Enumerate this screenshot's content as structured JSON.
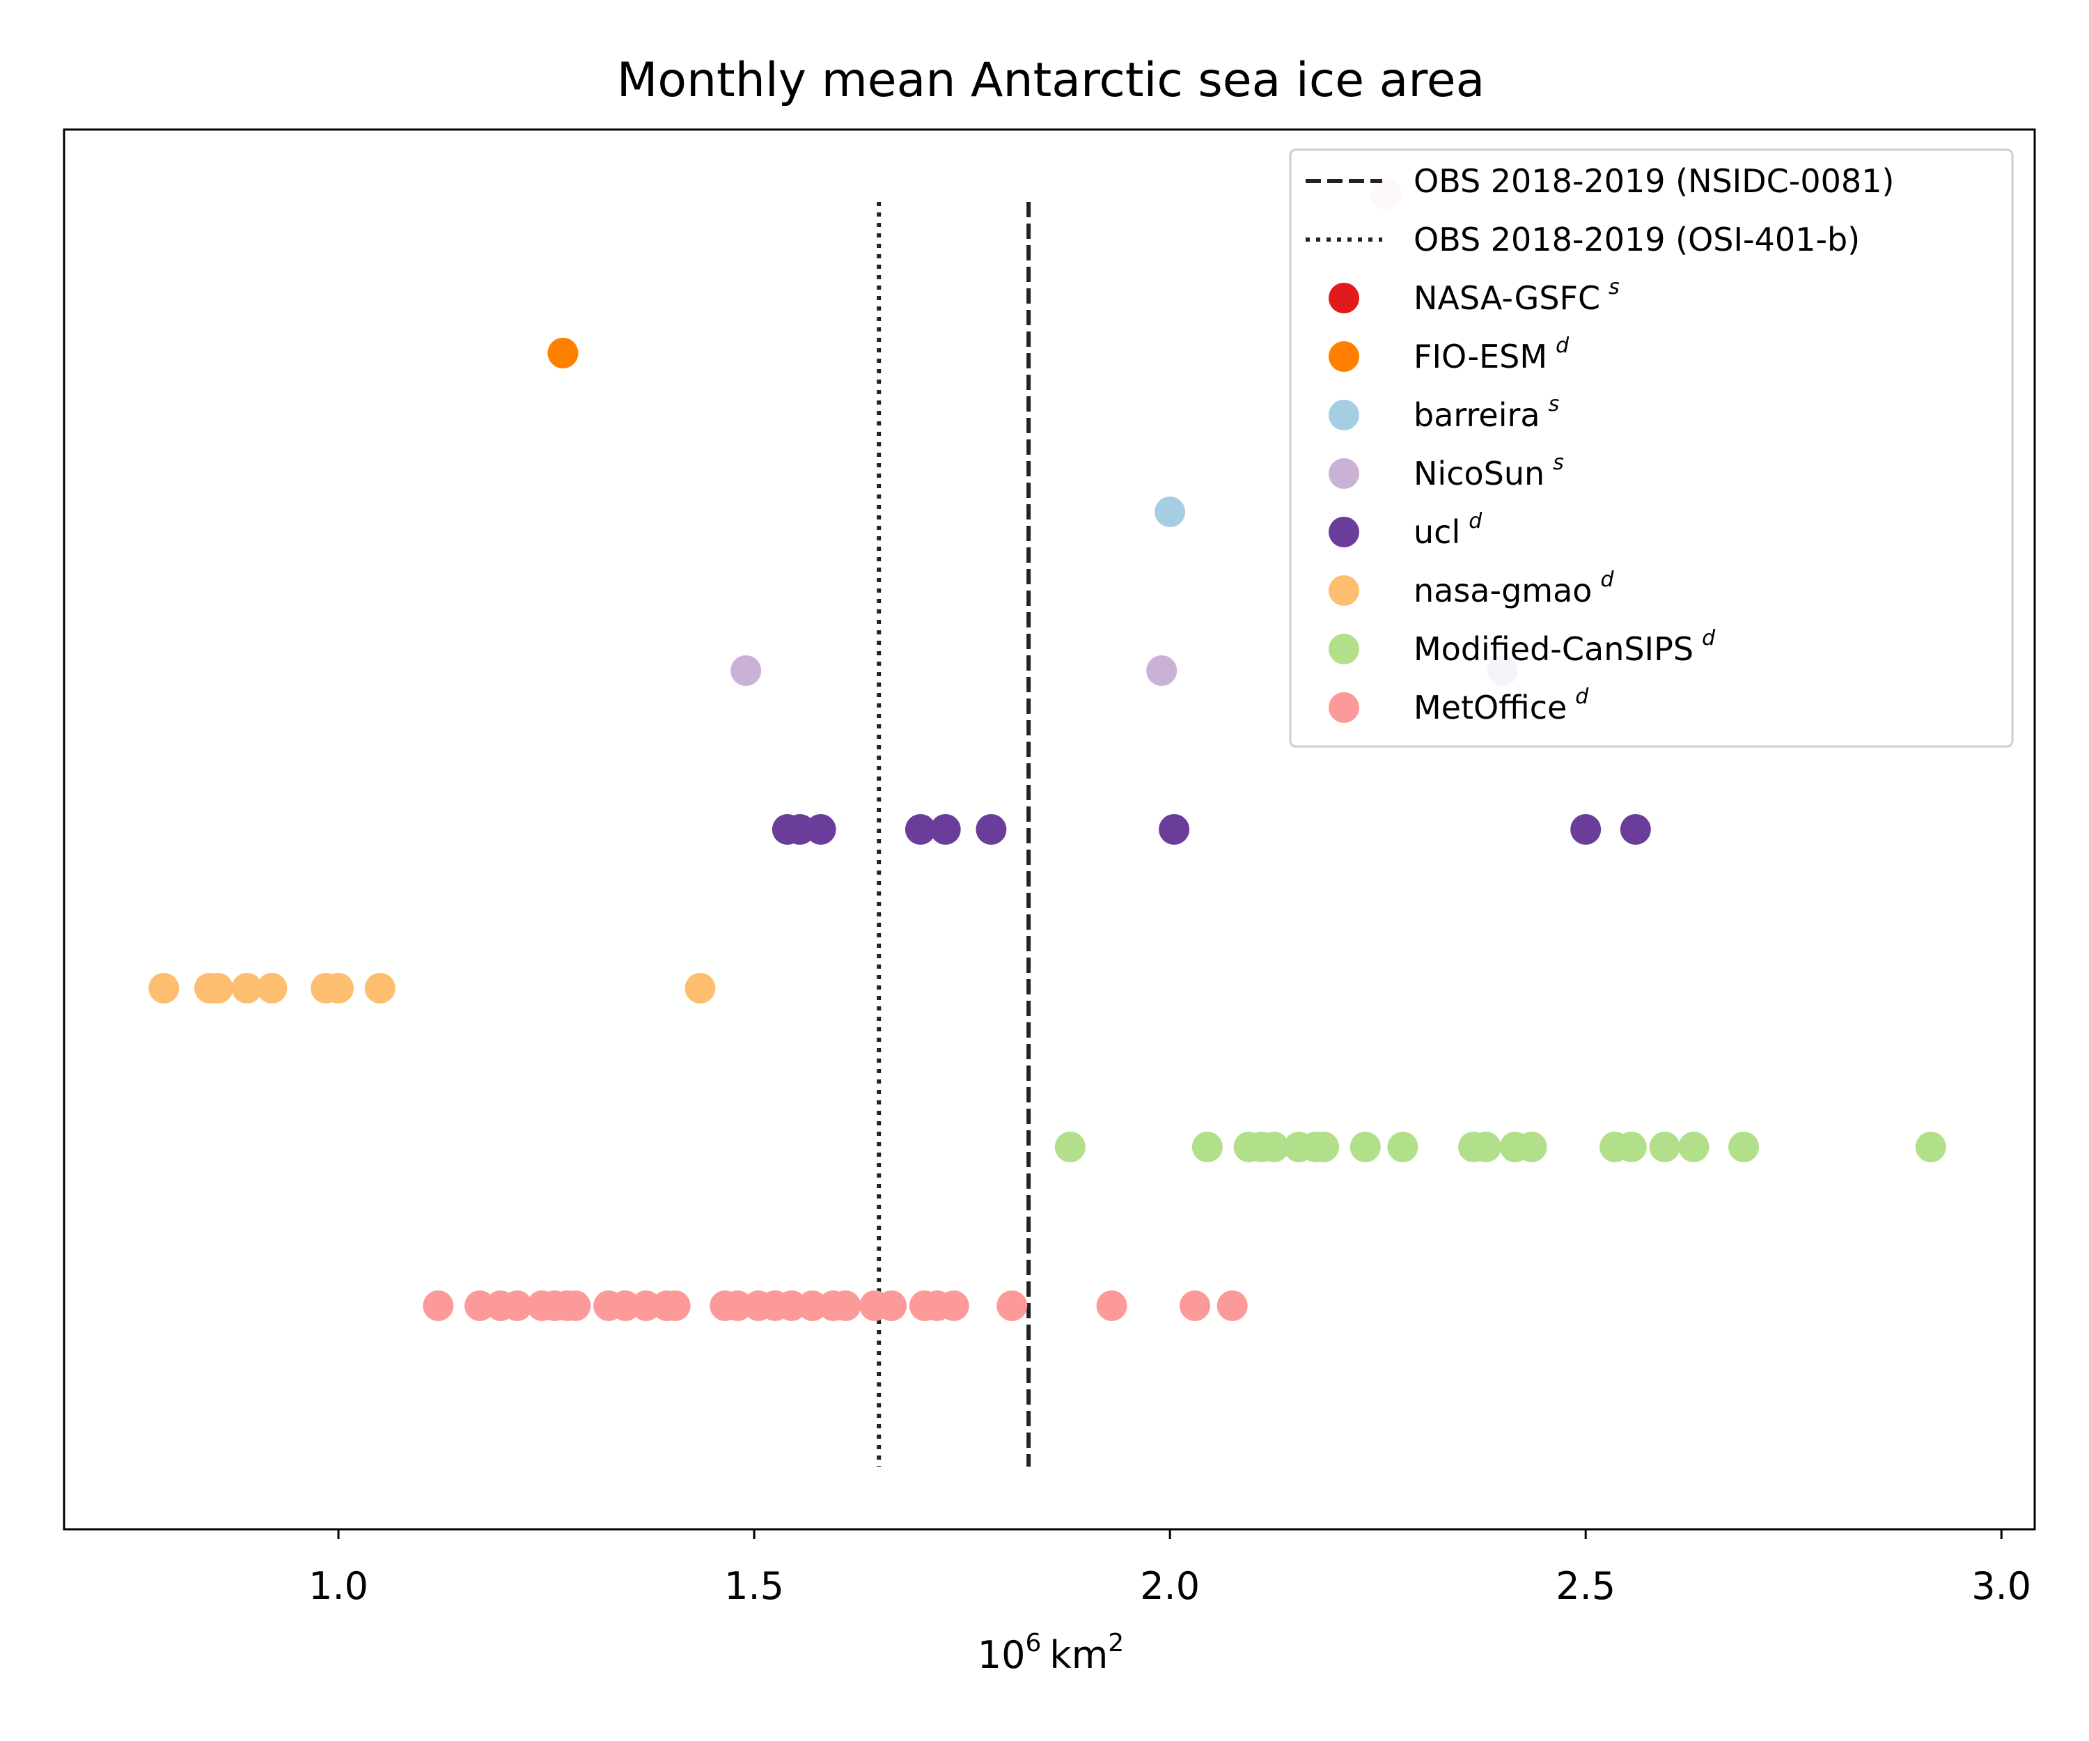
{
  "chart_data": {
    "type": "scatter",
    "title": "Monthly mean Antarctic sea ice area",
    "xlabel": "10",
    "xlabel_exponent": "6",
    "xlabel_unit": "km",
    "xlabel_unit_exponent": "2",
    "ylabel": "",
    "xlim": [
      0.67,
      3.04
    ],
    "xticks": [
      1.0,
      1.5,
      2.0,
      2.5,
      3.0
    ],
    "xtick_labels": [
      "1.0",
      "1.5",
      "2.0",
      "2.5",
      "3.0"
    ],
    "grid": false,
    "legend_position": "top-right",
    "reference_lines": [
      {
        "name": "OBS 2018-2019 (NSIDC-0081)",
        "x": 1.83,
        "style": "dashed",
        "color": "#222222"
      },
      {
        "name": "OBS 2018-2019 (OSI-401-b)",
        "x": 1.65,
        "style": "dotted",
        "color": "#222222"
      }
    ],
    "series": [
      {
        "name": "NASA-GSFC",
        "sup": "s",
        "color": "#e31a1c",
        "row": 8,
        "x": [
          2.26
        ],
        "alpha": 0.2
      },
      {
        "name": "FIO-ESM",
        "sup": "d",
        "color": "#ff7f00",
        "row": 7,
        "x": [
          1.27
        ]
      },
      {
        "name": "barreira",
        "sup": "s",
        "color": "#a6cee3",
        "row": 6,
        "x": [
          2.0
        ]
      },
      {
        "name": "NicoSun",
        "sup": "s",
        "color": "#cab2d6",
        "row": 5,
        "x": [
          1.49,
          1.99,
          2.4
        ]
      },
      {
        "name": "ucl",
        "sup": "d",
        "color": "#6a3d9a",
        "row": 4,
        "x": [
          1.54,
          1.555,
          1.58,
          1.7,
          1.73,
          1.785,
          2.005,
          2.5,
          2.56
        ]
      },
      {
        "name": "nasa-gmao",
        "sup": "d",
        "color": "#fdbf6f",
        "row": 3,
        "x": [
          0.79,
          0.845,
          0.855,
          0.89,
          0.92,
          0.985,
          1.0,
          1.05,
          1.435
        ]
      },
      {
        "name": "Modified-CanSIPS",
        "sup": "d",
        "color": "#b2df8a",
        "row": 2,
        "x": [
          1.88,
          2.045,
          2.095,
          2.11,
          2.125,
          2.155,
          2.175,
          2.185,
          2.235,
          2.28,
          2.365,
          2.38,
          2.415,
          2.435,
          2.535,
          2.555,
          2.595,
          2.63,
          2.69,
          2.915
        ]
      },
      {
        "name": "MetOffice",
        "sup": "d",
        "color": "#fb9a99",
        "row": 1,
        "x": [
          1.12,
          1.17,
          1.195,
          1.215,
          1.245,
          1.26,
          1.275,
          1.285,
          1.325,
          1.345,
          1.37,
          1.395,
          1.405,
          1.465,
          1.48,
          1.505,
          1.525,
          1.545,
          1.57,
          1.595,
          1.61,
          1.645,
          1.665,
          1.705,
          1.72,
          1.74,
          1.81,
          1.93,
          2.03,
          2.075
        ]
      }
    ]
  }
}
